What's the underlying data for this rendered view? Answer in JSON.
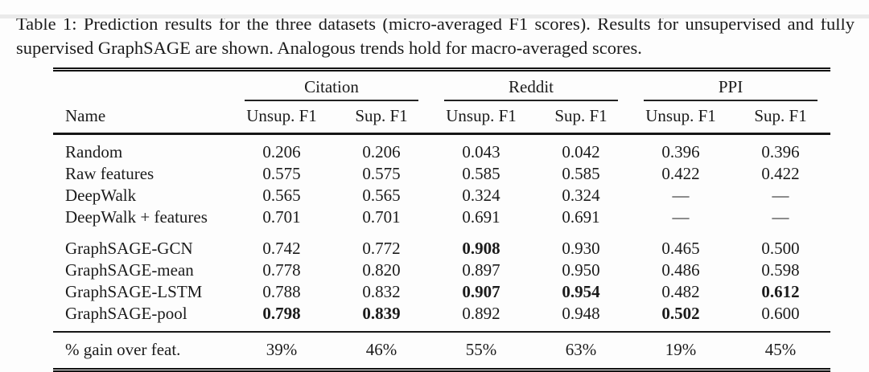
{
  "caption": "Table 1: Prediction results for the three datasets (micro-averaged F1 scores). Results for unsupervised and fully supervised GraphSAGE are shown. Analogous trends hold for macro-averaged scores.",
  "table": {
    "name_header": "Name",
    "groups": [
      {
        "label": "Citation"
      },
      {
        "label": "Reddit"
      },
      {
        "label": "PPI"
      }
    ],
    "subheaders": [
      "Unsup. F1",
      "Sup. F1",
      "Unsup. F1",
      "Sup. F1",
      "Unsup. F1",
      "Sup. F1"
    ],
    "rows": [
      {
        "name": "Random",
        "cells": [
          {
            "v": "0.206",
            "b": false
          },
          {
            "v": "0.206",
            "b": false
          },
          {
            "v": "0.043",
            "b": false
          },
          {
            "v": "0.042",
            "b": false
          },
          {
            "v": "0.396",
            "b": false
          },
          {
            "v": "0.396",
            "b": false
          }
        ]
      },
      {
        "name": "Raw features",
        "cells": [
          {
            "v": "0.575",
            "b": false
          },
          {
            "v": "0.575",
            "b": false
          },
          {
            "v": "0.585",
            "b": false
          },
          {
            "v": "0.585",
            "b": false
          },
          {
            "v": "0.422",
            "b": false
          },
          {
            "v": "0.422",
            "b": false
          }
        ]
      },
      {
        "name": "DeepWalk",
        "cells": [
          {
            "v": "0.565",
            "b": false
          },
          {
            "v": "0.565",
            "b": false
          },
          {
            "v": "0.324",
            "b": false
          },
          {
            "v": "0.324",
            "b": false
          },
          {
            "v": "—",
            "b": false
          },
          {
            "v": "—",
            "b": false
          }
        ]
      },
      {
        "name": "DeepWalk + features",
        "cells": [
          {
            "v": "0.701",
            "b": false
          },
          {
            "v": "0.701",
            "b": false
          },
          {
            "v": "0.691",
            "b": false
          },
          {
            "v": "0.691",
            "b": false
          },
          {
            "v": "—",
            "b": false
          },
          {
            "v": "—",
            "b": false
          }
        ]
      },
      {
        "name": "GraphSAGE-GCN",
        "cells": [
          {
            "v": "0.742",
            "b": false
          },
          {
            "v": "0.772",
            "b": false
          },
          {
            "v": "0.908",
            "b": true
          },
          {
            "v": "0.930",
            "b": false
          },
          {
            "v": "0.465",
            "b": false
          },
          {
            "v": "0.500",
            "b": false
          }
        ]
      },
      {
        "name": "GraphSAGE-mean",
        "cells": [
          {
            "v": "0.778",
            "b": false
          },
          {
            "v": "0.820",
            "b": false
          },
          {
            "v": "0.897",
            "b": false
          },
          {
            "v": "0.950",
            "b": false
          },
          {
            "v": "0.486",
            "b": false
          },
          {
            "v": "0.598",
            "b": false
          }
        ]
      },
      {
        "name": "GraphSAGE-LSTM",
        "cells": [
          {
            "v": "0.788",
            "b": false
          },
          {
            "v": "0.832",
            "b": false
          },
          {
            "v": "0.907",
            "b": true
          },
          {
            "v": "0.954",
            "b": true
          },
          {
            "v": "0.482",
            "b": false
          },
          {
            "v": "0.612",
            "b": true
          }
        ]
      },
      {
        "name": "GraphSAGE-pool",
        "cells": [
          {
            "v": "0.798",
            "b": true
          },
          {
            "v": "0.839",
            "b": true
          },
          {
            "v": "0.892",
            "b": false
          },
          {
            "v": "0.948",
            "b": false
          },
          {
            "v": "0.502",
            "b": true
          },
          {
            "v": "0.600",
            "b": false
          }
        ]
      }
    ],
    "footer": {
      "name": "% gain over feat.",
      "cells": [
        {
          "v": "39%",
          "b": false
        },
        {
          "v": "46%",
          "b": false
        },
        {
          "v": "55%",
          "b": false
        },
        {
          "v": "63%",
          "b": false
        },
        {
          "v": "19%",
          "b": false
        },
        {
          "v": "45%",
          "b": false
        }
      ]
    }
  }
}
